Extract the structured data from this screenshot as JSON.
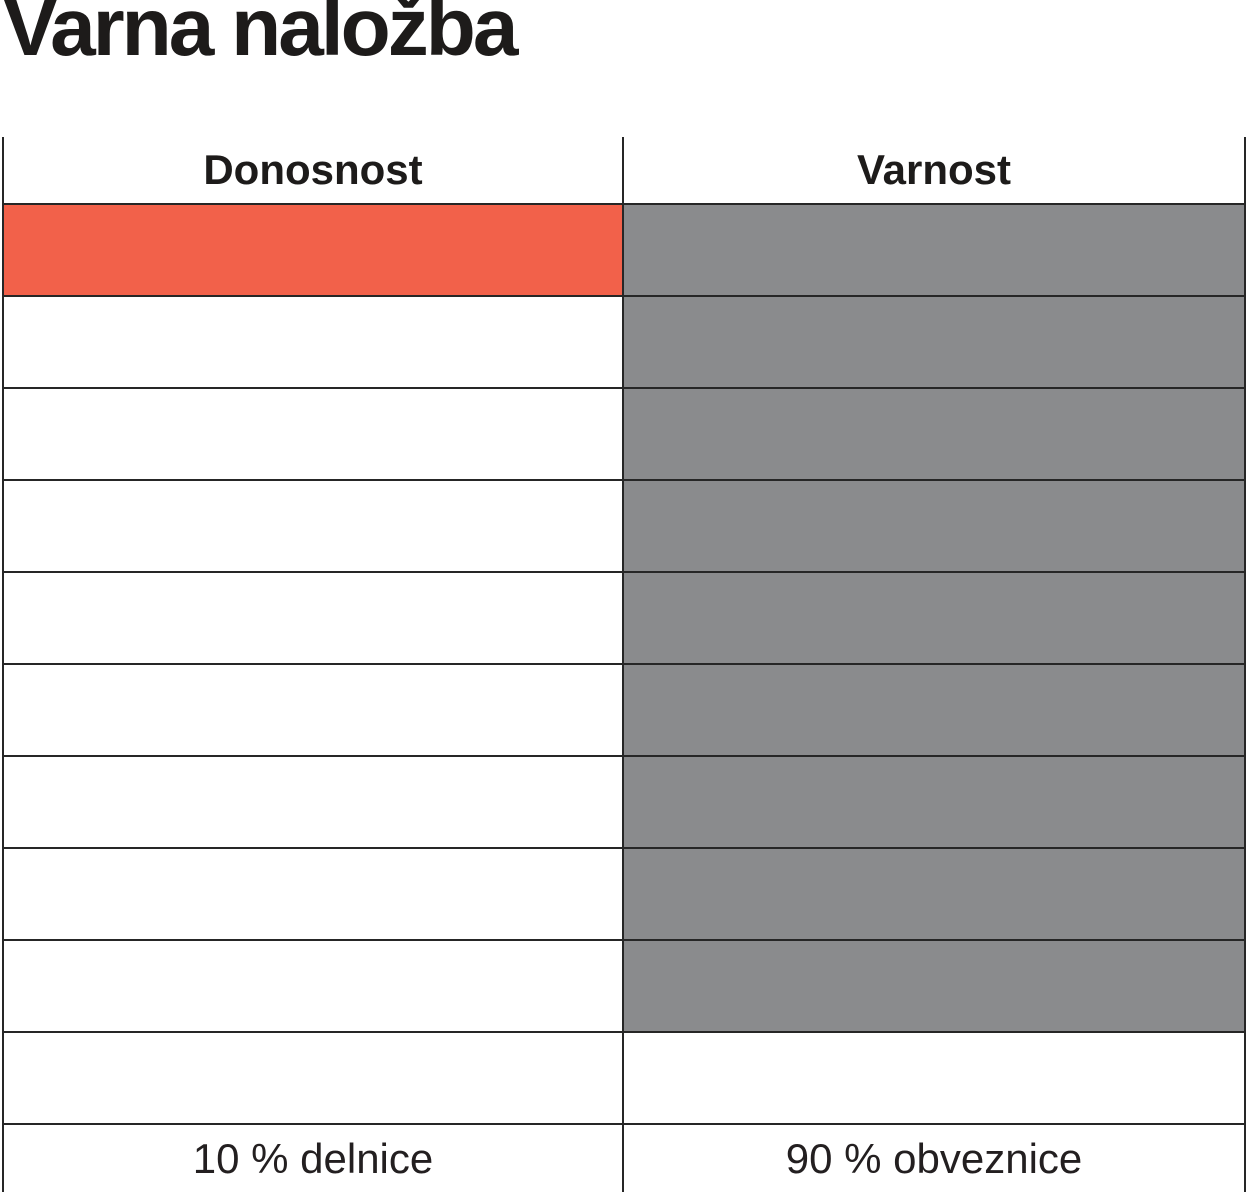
{
  "title": "Varna naložba",
  "table": {
    "columns": [
      {
        "header": "Donosnost",
        "footer_label": "10 % delnice"
      },
      {
        "header": "Varnost",
        "footer_label": "90 % obveznice"
      }
    ]
  },
  "chart_data": {
    "type": "table",
    "title": "Varna naložba",
    "description": "Waffle-style allocation chart: two columns of 10 cells each; cells filled from the top show each component's share of the portfolio.",
    "categories": [
      "Donosnost",
      "Varnost"
    ],
    "total_cells_per_column": 10,
    "series": [
      {
        "name": "Donosnost",
        "percent": 10,
        "filled_cells": 1,
        "label": "10 % delnice",
        "fill_color": "#F2614A"
      },
      {
        "name": "Varnost",
        "percent": 90,
        "filled_cells": 9,
        "label": "90 % obveznice",
        "fill_color": "#8A8B8D"
      }
    ],
    "empty_color": "#FFFFFF",
    "legend_position": "bottom",
    "grid": true
  },
  "colors": {
    "accent_red": "#F2614A",
    "fill_gray": "#8A8B8D",
    "border": "#262626",
    "text": "#231F20",
    "background": "#FFFFFF"
  }
}
